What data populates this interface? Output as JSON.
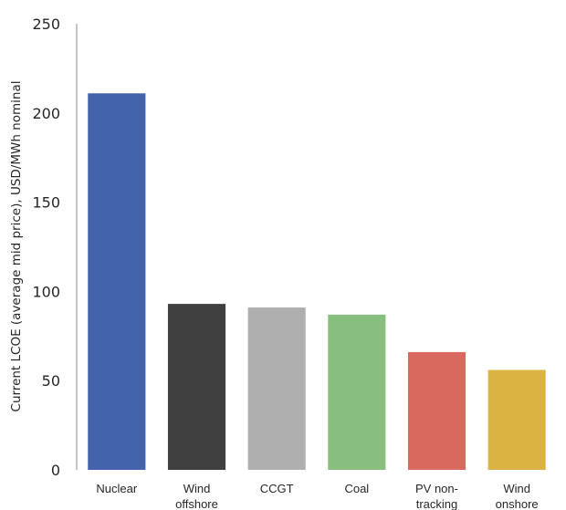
{
  "chart_data": {
    "type": "bar",
    "title": "",
    "xlabel": "",
    "ylabel": "Current LCOE (average mid price), USD/MWh nominal",
    "ylim": [
      0,
      250
    ],
    "yticks": [
      0,
      50,
      100,
      150,
      200,
      250
    ],
    "grid": false,
    "categories": [
      [
        "Nuclear"
      ],
      [
        "Wind",
        "offshore"
      ],
      [
        "CCGT"
      ],
      [
        "Coal"
      ],
      [
        "PV non-",
        "tracking"
      ],
      [
        "Wind",
        "onshore"
      ]
    ],
    "values": [
      211,
      93,
      91,
      87,
      66,
      56
    ],
    "colors": [
      "#4363ad",
      "#404040",
      "#afafaf",
      "#88bf7f",
      "#d9695f",
      "#dbb342"
    ]
  }
}
